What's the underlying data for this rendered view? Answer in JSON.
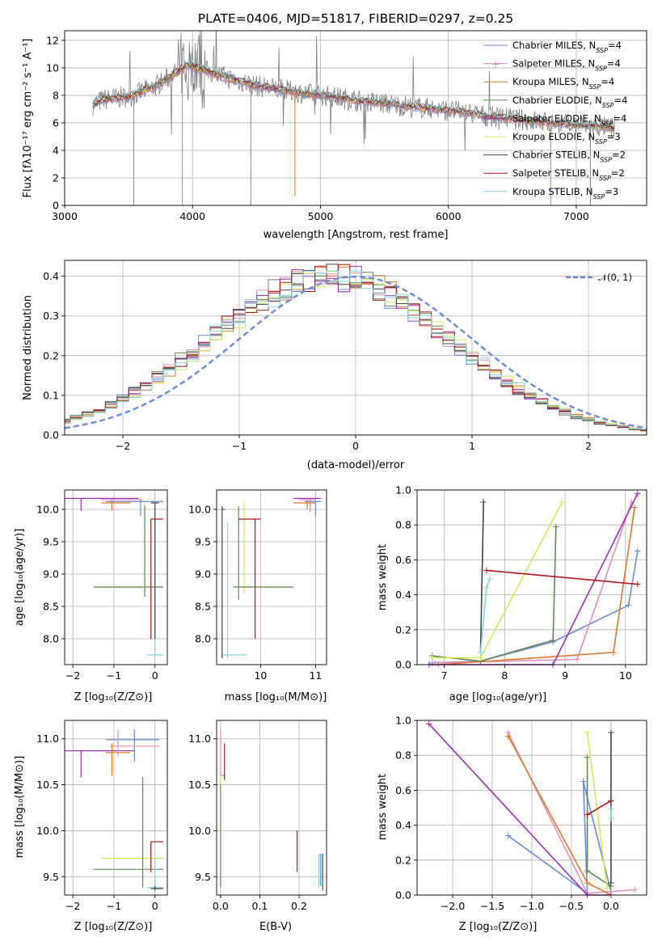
{
  "title": "PLATE=0406, MJD=51817, FIBERID=0297, z=0.25",
  "colors": [
    "#6a8ed8",
    "#e58cc0",
    "#e07a28",
    "#5e8a5e",
    "#9b30b0",
    "#d4e85a",
    "#444444",
    "#b01818",
    "#7fd8e0"
  ],
  "chart_data": [
    {
      "type": "line",
      "xlabel": "wavelength [Angstrom, rest frame]",
      "ylabel": "Flux [fλ10⁻¹⁷ erg cm⁻² s⁻¹ A⁻¹]",
      "xlim": [
        3000,
        7550
      ],
      "ylim": [
        0,
        12.7
      ],
      "xticks": [
        "3000",
        "4000",
        "5000",
        "6000",
        "7000"
      ],
      "yticks": [
        "0",
        "2",
        "4",
        "6",
        "8",
        "10",
        "12"
      ],
      "legend_position": "top-right",
      "legend": [
        "Chabrier MILES, N_SSP=4",
        "Salpeter MILES, N_SSP=4",
        "Kroupa MILES, N_SSP=4",
        "Chabrier ELODIE, N_SSP=4",
        "Salpeter ELODIE, N_SSP=4",
        "Kroupa ELODIE, N_SSP=3",
        "Chabrier STELIB, N_SSP=2",
        "Salpeter STELIB, N_SSP=2",
        "Kroupa STELIB, N_SSP=3"
      ],
      "continuum": {
        "x": [
          3220,
          3300,
          3500,
          3700,
          3800,
          3900,
          3950,
          4000,
          4100,
          4300,
          4500,
          4700,
          4900,
          5100,
          5300,
          5500,
          5700,
          5900,
          6100,
          6300,
          6500,
          6700,
          6900,
          7100,
          7300
        ],
        "y": [
          7.3,
          7.7,
          7.9,
          8.6,
          9.2,
          9.8,
          10.2,
          10.1,
          9.8,
          9.2,
          8.7,
          8.4,
          8.1,
          7.9,
          7.6,
          7.4,
          7.2,
          7.0,
          6.8,
          6.5,
          6.3,
          6.1,
          5.9,
          5.8,
          5.6
        ]
      }
    },
    {
      "type": "bar",
      "xlabel": "(data-model)/error",
      "ylabel": "Normed distribution",
      "xlim": [
        -2.5,
        2.5
      ],
      "ylim": [
        0,
        0.44
      ],
      "xticks": [
        "−2",
        "−1",
        "0",
        "1",
        "2"
      ],
      "yticks": [
        "0.0",
        "0.1",
        "0.2",
        "0.3",
        "0.4"
      ],
      "legend": [
        "𝒩(0, 1)"
      ],
      "legend_position": "top-right"
    },
    {
      "type": "scatter",
      "xlabel": "Z [log₁₀(Z/Z⊙)]",
      "ylabel": "age  [log₁₀(age/yr)]",
      "xlim": [
        -2.2,
        0.3
      ],
      "ylim": [
        7.6,
        10.3
      ],
      "xticks": [
        "−2",
        "−1",
        "0"
      ],
      "yticks": [
        "8.0",
        "8.5",
        "9.0",
        "9.5",
        "10.0"
      ]
    },
    {
      "type": "scatter",
      "xlabel": "mass [log₁₀(M/M⊙)]",
      "xlim": [
        9.2,
        11.2
      ],
      "ylim": [
        7.6,
        10.3
      ],
      "xticks": [
        "10",
        "11"
      ],
      "yticks": [
        "8.0",
        "8.5",
        "9.0",
        "9.5",
        "10.0"
      ]
    },
    {
      "type": "line",
      "xlabel": "age  [log₁₀(age/yr)]",
      "ylabel": "mass weight",
      "xlim": [
        6.55,
        10.35
      ],
      "ylim": [
        0,
        1
      ],
      "xticks": [
        "7",
        "8",
        "9",
        "10"
      ],
      "yticks": [
        "0.0",
        "0.2",
        "0.4",
        "0.6",
        "0.8",
        "1.0"
      ],
      "series": [
        {
          "x": [
            6.8,
            7.6,
            8.8,
            10.05,
            10.2
          ],
          "y": [
            0.01,
            0.02,
            0.13,
            0.34,
            0.65
          ]
        },
        {
          "x": [
            6.85,
            9.2,
            10.1
          ],
          "y": [
            0.01,
            0.03,
            0.93
          ]
        },
        {
          "x": [
            6.9,
            9.8,
            10.15
          ],
          "y": [
            0.0,
            0.07,
            0.9
          ]
        },
        {
          "x": [
            6.8,
            7.6,
            8.8,
            8.85
          ],
          "y": [
            0.05,
            0.02,
            0.14,
            0.79
          ]
        },
        {
          "x": [
            6.75,
            8.8,
            10.2
          ],
          "y": [
            0.0,
            0.0,
            0.98
          ]
        },
        {
          "x": [
            6.8,
            7.6,
            8.95
          ],
          "y": [
            0.04,
            0.04,
            0.93
          ]
        },
        {
          "x": [
            7.6,
            7.65
          ],
          "y": [
            0.07,
            0.93
          ]
        },
        {
          "x": [
            7.7,
            10.2
          ],
          "y": [
            0.54,
            0.46
          ]
        },
        {
          "x": [
            7.6,
            7.7,
            7.75
          ],
          "y": [
            0.07,
            0.44,
            0.49
          ]
        }
      ]
    },
    {
      "type": "scatter",
      "xlabel": "Z [log₁₀(Z/Z⊙)]",
      "ylabel": "mass [log₁₀(M/M⊙)]",
      "xlim": [
        -2.2,
        0.3
      ],
      "ylim": [
        9.3,
        11.2
      ],
      "xticks": [
        "−2",
        "−1",
        "0"
      ],
      "yticks": [
        "9.5",
        "10.0",
        "10.5",
        "11.0"
      ]
    },
    {
      "type": "scatter",
      "xlabel": "E(B-V)",
      "xlim": [
        -0.01,
        0.27
      ],
      "ylim": [
        9.3,
        11.2
      ],
      "xticks": [
        "0.0",
        "0.1",
        "0.2"
      ],
      "yticks": [
        "9.5",
        "10.0",
        "10.5",
        "11.0"
      ]
    },
    {
      "type": "line",
      "xlabel": "Z [log₁₀(Z/Z⊙)]",
      "ylabel": "mass weight",
      "xlim": [
        -2.45,
        0.45
      ],
      "ylim": [
        0,
        1
      ],
      "xticks": [
        "−2.0",
        "−1.5",
        "−1.0",
        "−0.5",
        "0.0"
      ],
      "yticks": [
        "0.0",
        "0.2",
        "0.4",
        "0.6",
        "0.8",
        "1.0"
      ],
      "series": [
        {
          "x": [
            -1.3,
            -0.3,
            -0.35,
            0.0
          ],
          "y": [
            0.34,
            0.01,
            0.65,
            0.02
          ]
        },
        {
          "x": [
            -1.3,
            -0.3,
            0.3
          ],
          "y": [
            0.93,
            0.01,
            0.03
          ]
        },
        {
          "x": [
            -1.3,
            -0.3,
            0.0
          ],
          "y": [
            0.91,
            0.07,
            0.0
          ]
        },
        {
          "x": [
            -0.3,
            -0.3,
            0.0
          ],
          "y": [
            0.79,
            0.14,
            0.05
          ]
        },
        {
          "x": [
            -2.3,
            -0.3,
            0.0
          ],
          "y": [
            0.98,
            0.0,
            0.0
          ]
        },
        {
          "x": [
            -0.3,
            -0.05
          ],
          "y": [
            0.93,
            0.04
          ]
        },
        {
          "x": [
            0.0,
            0.0
          ],
          "y": [
            0.93,
            0.07
          ]
        },
        {
          "x": [
            -0.3,
            0.0
          ],
          "y": [
            0.46,
            0.54
          ]
        },
        {
          "x": [
            0.0,
            0.0
          ],
          "y": [
            0.49,
            0.44
          ]
        }
      ]
    }
  ]
}
